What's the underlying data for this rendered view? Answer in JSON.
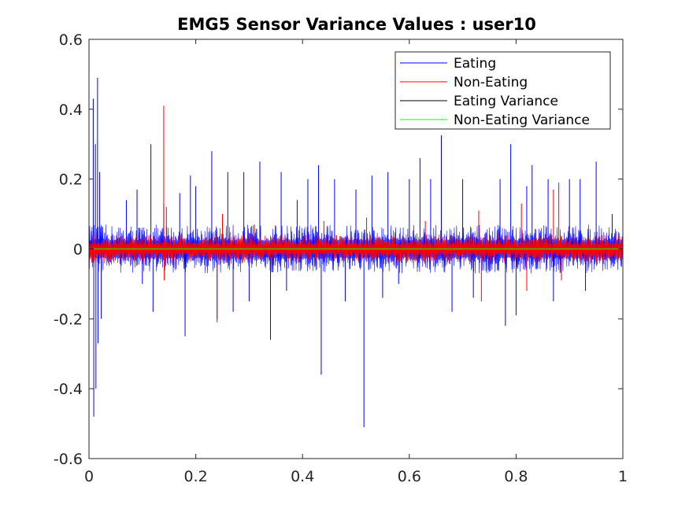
{
  "chart_data": {
    "type": "line",
    "title": "EMG5 Sensor Variance Values : user10",
    "xlabel": "",
    "ylabel": "",
    "xlim": [
      0,
      1
    ],
    "ylim": [
      -0.6,
      0.6
    ],
    "x_ticks": [
      0,
      0.2,
      0.4,
      0.6,
      0.8,
      1
    ],
    "x_tick_labels": [
      "0",
      "0.2",
      "0.4",
      "0.6",
      "0.8",
      "1"
    ],
    "y_ticks": [
      -0.6,
      -0.4,
      -0.2,
      0,
      0.2,
      0.4,
      0.6
    ],
    "y_tick_labels": [
      "-0.6",
      "-0.4",
      "-0.2",
      "0",
      "0.2",
      "0.4",
      "0.6"
    ],
    "grid": false,
    "legend_position": "top-right",
    "series": [
      {
        "name": "Eating",
        "color": "#0000ff",
        "noise_band": [
          -0.07,
          0.07
        ],
        "peaks": [
          [
            0.008,
            0.43
          ],
          [
            0.009,
            -0.48
          ],
          [
            0.012,
            0.3
          ],
          [
            0.013,
            -0.4
          ],
          [
            0.016,
            0.49
          ],
          [
            0.017,
            -0.27
          ],
          [
            0.02,
            0.22
          ],
          [
            0.023,
            -0.2
          ],
          [
            0.07,
            0.14
          ],
          [
            0.09,
            0.17
          ],
          [
            0.1,
            -0.1
          ],
          [
            0.116,
            0.3
          ],
          [
            0.12,
            -0.18
          ],
          [
            0.14,
            0.13
          ],
          [
            0.17,
            0.16
          ],
          [
            0.18,
            -0.25
          ],
          [
            0.19,
            0.21
          ],
          [
            0.2,
            0.18
          ],
          [
            0.23,
            0.28
          ],
          [
            0.24,
            -0.2
          ],
          [
            0.26,
            0.22
          ],
          [
            0.27,
            -0.18
          ],
          [
            0.29,
            0.22
          ],
          [
            0.3,
            -0.15
          ],
          [
            0.32,
            0.25
          ],
          [
            0.34,
            -0.26
          ],
          [
            0.36,
            0.22
          ],
          [
            0.37,
            -0.12
          ],
          [
            0.39,
            0.14
          ],
          [
            0.41,
            0.2
          ],
          [
            0.43,
            0.24
          ],
          [
            0.435,
            -0.36
          ],
          [
            0.46,
            0.2
          ],
          [
            0.48,
            -0.15
          ],
          [
            0.5,
            0.17
          ],
          [
            0.515,
            -0.51
          ],
          [
            0.53,
            0.21
          ],
          [
            0.55,
            -0.14
          ],
          [
            0.56,
            0.22
          ],
          [
            0.58,
            -0.1
          ],
          [
            0.6,
            0.2
          ],
          [
            0.62,
            0.26
          ],
          [
            0.64,
            0.2
          ],
          [
            0.66,
            0.325
          ],
          [
            0.68,
            -0.18
          ],
          [
            0.7,
            0.2
          ],
          [
            0.72,
            -0.14
          ],
          [
            0.77,
            0.2
          ],
          [
            0.78,
            -0.22
          ],
          [
            0.79,
            0.3
          ],
          [
            0.8,
            -0.19
          ],
          [
            0.82,
            0.18
          ],
          [
            0.83,
            0.24
          ],
          [
            0.86,
            0.2
          ],
          [
            0.87,
            -0.15
          ],
          [
            0.9,
            0.2
          ],
          [
            0.92,
            0.2
          ],
          [
            0.93,
            -0.12
          ],
          [
            0.95,
            0.25
          ],
          [
            0.98,
            0.1
          ]
        ]
      },
      {
        "name": "Non-Eating",
        "color": "#ff0000",
        "noise_band": [
          -0.04,
          0.04
        ],
        "peaks": [
          [
            0.14,
            0.41
          ],
          [
            0.141,
            -0.09
          ],
          [
            0.145,
            0.12
          ],
          [
            0.24,
            -0.21
          ],
          [
            0.25,
            0.1
          ],
          [
            0.31,
            0.07
          ],
          [
            0.44,
            0.08
          ],
          [
            0.52,
            0.09
          ],
          [
            0.63,
            0.08
          ],
          [
            0.73,
            0.11
          ],
          [
            0.735,
            -0.15
          ],
          [
            0.81,
            0.13
          ],
          [
            0.82,
            -0.12
          ],
          [
            0.87,
            0.17
          ],
          [
            0.88,
            0.19
          ],
          [
            0.885,
            -0.09
          ]
        ]
      },
      {
        "name": "Eating Variance",
        "color": "#000000",
        "constant": 0.0
      },
      {
        "name": "Non-Eating Variance",
        "color": "#00ff00",
        "constant": 0.0
      }
    ]
  }
}
